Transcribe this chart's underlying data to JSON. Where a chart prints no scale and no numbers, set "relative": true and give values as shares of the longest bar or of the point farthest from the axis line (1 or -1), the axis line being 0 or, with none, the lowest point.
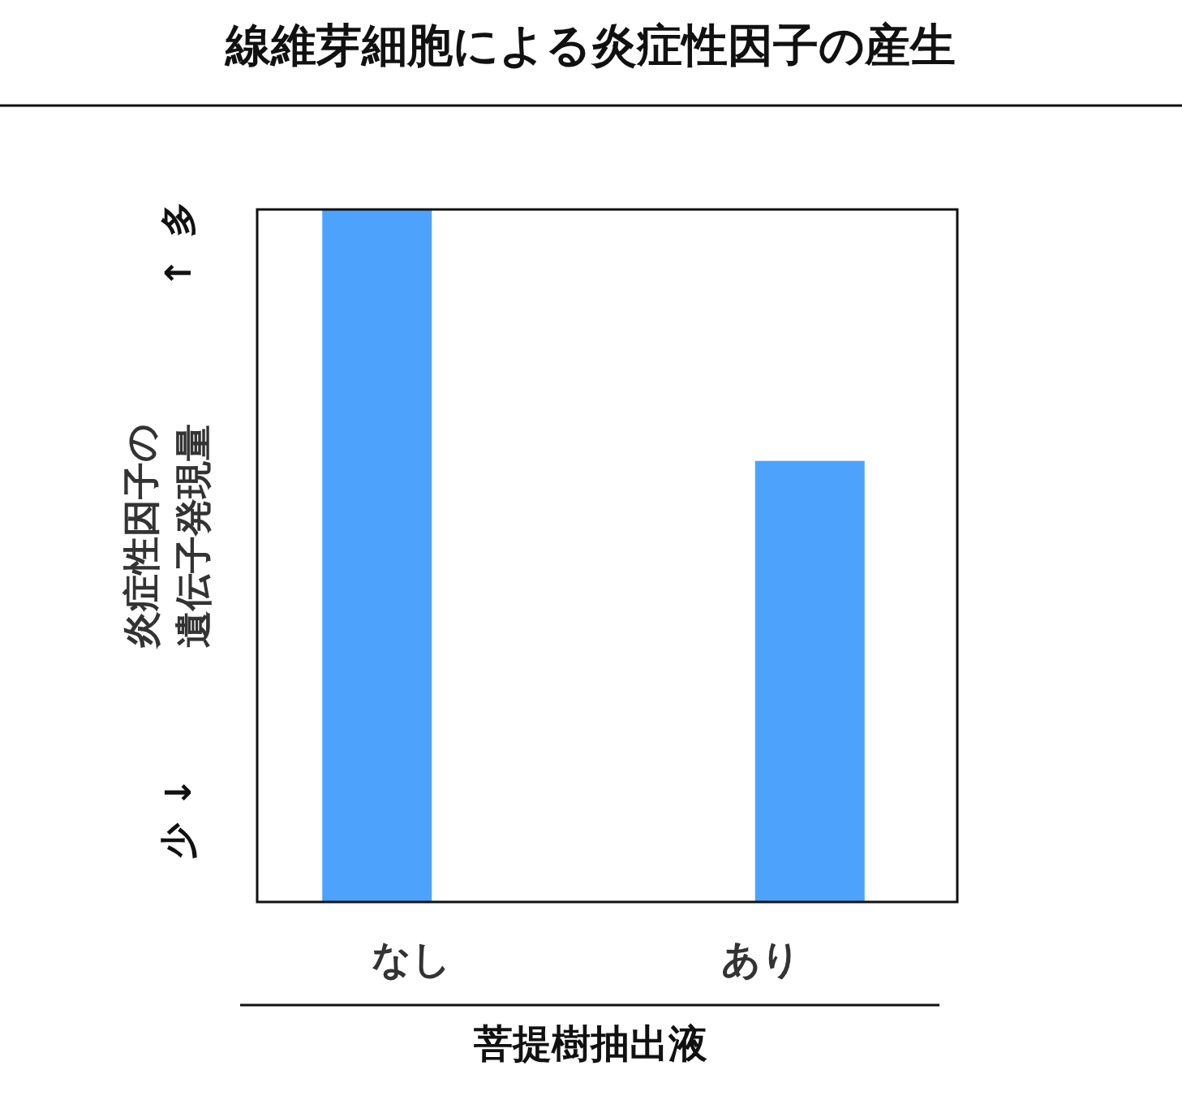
{
  "chart_data": {
    "type": "bar",
    "title": "線維芽細胞による炎症性因子の産生",
    "xlabel": "菩提樹抽出液",
    "ylabel": "炎症性因子の遺伝子発現量",
    "annotations": [
      "多",
      "↑",
      "↓",
      "少"
    ],
    "categories": [
      "なし",
      "あり"
    ],
    "values": [
      1,
      0.637
    ],
    "color": "#4da3fb",
    "relative": true
  }
}
